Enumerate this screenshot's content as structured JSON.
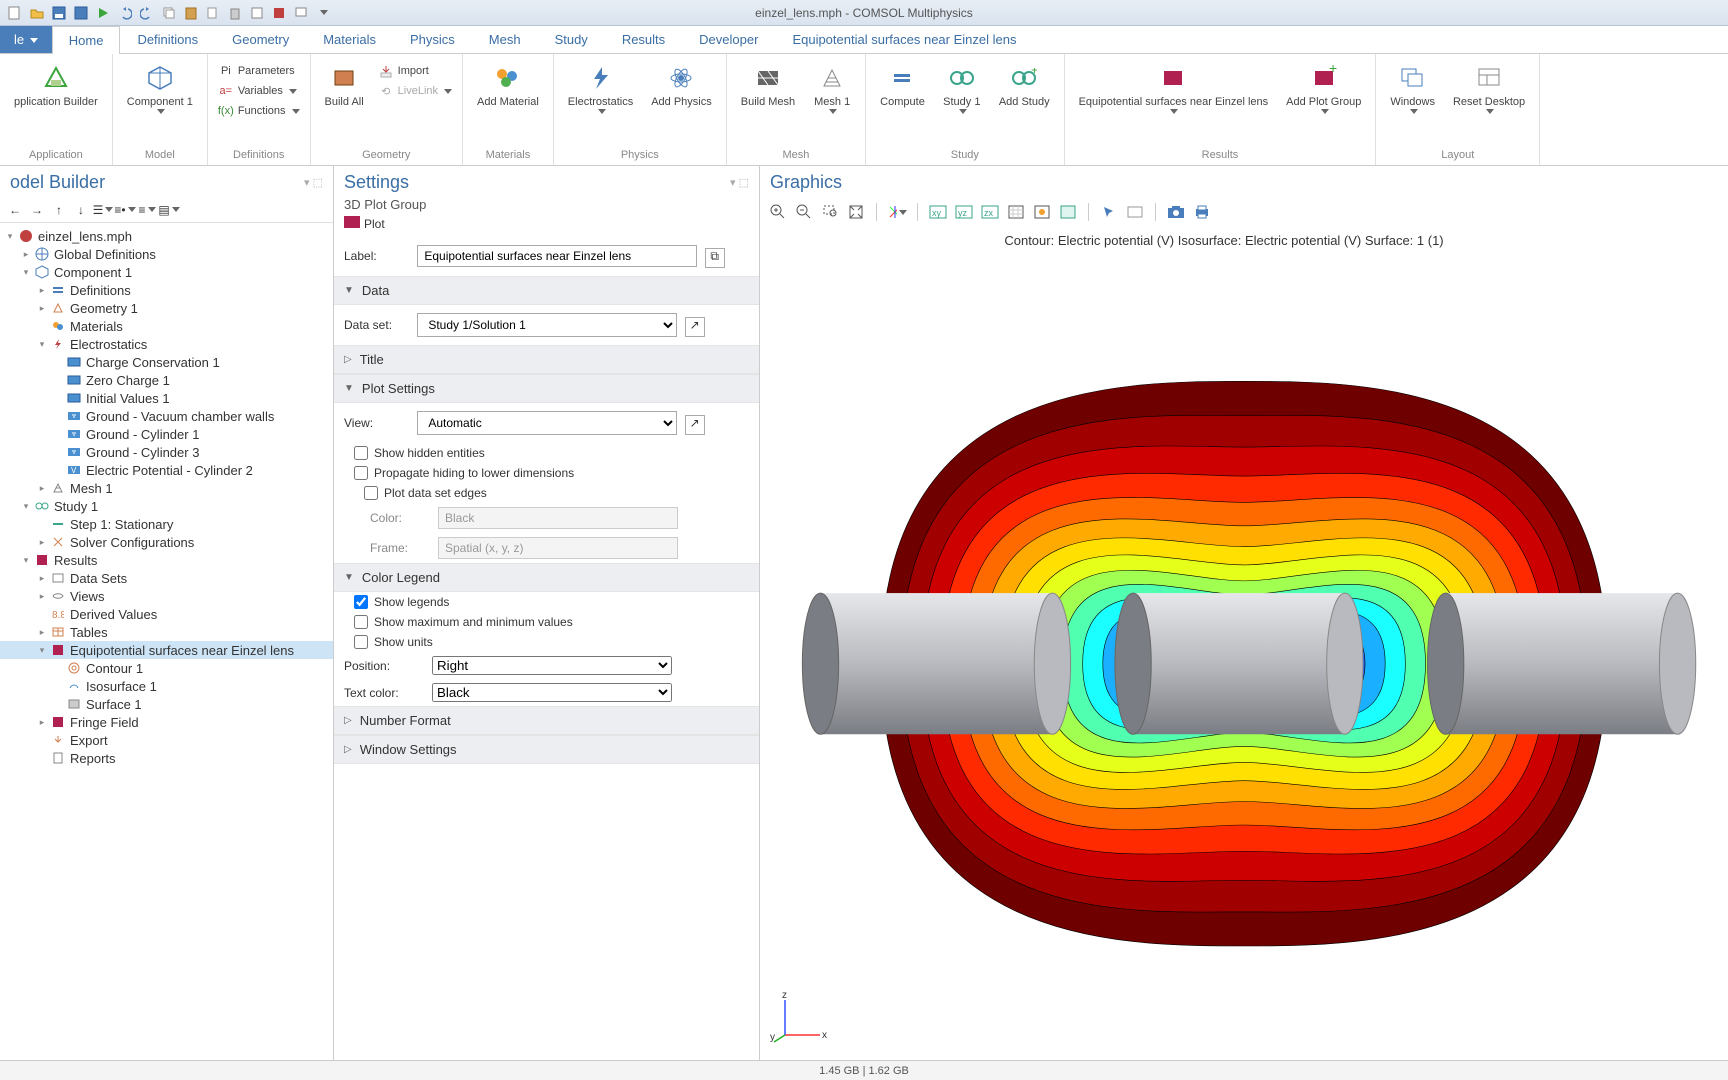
{
  "window": {
    "title": "einzel_lens.mph - COMSOL Multiphysics"
  },
  "ribbon": {
    "filemenu": "le",
    "tabs": [
      "Home",
      "Definitions",
      "Geometry",
      "Materials",
      "Physics",
      "Mesh",
      "Study",
      "Results",
      "Developer",
      "Equipotential surfaces near Einzel lens"
    ],
    "active_tab": 0,
    "groups": {
      "application": {
        "label": "Application",
        "appbuilder": "pplication\nBuilder"
      },
      "model": {
        "label": "Model",
        "component": "Component\n1"
      },
      "definitions": {
        "label": "Definitions",
        "parameters": "Parameters",
        "variables": "Variables",
        "functions": "Functions"
      },
      "geometry": {
        "label": "Geometry",
        "buildall": "Build\nAll",
        "import": "Import",
        "livelink": "LiveLink"
      },
      "materials": {
        "label": "Materials",
        "add": "Add\nMaterial"
      },
      "physics": {
        "label": "Physics",
        "electrostatics": "Electrostatics",
        "addphysics": "Add\nPhysics"
      },
      "mesh": {
        "label": "Mesh",
        "build": "Build\nMesh",
        "mesh1": "Mesh\n1"
      },
      "study": {
        "label": "Study",
        "compute": "Compute",
        "study1": "Study\n1",
        "addstudy": "Add\nStudy"
      },
      "results": {
        "label": "Results",
        "plot": "Equipotential surfaces\nnear Einzel lens",
        "addplot": "Add Plot\nGroup"
      },
      "layout": {
        "label": "Layout",
        "windows": "Windows",
        "reset": "Reset\nDesktop"
      }
    }
  },
  "modelbuilder": {
    "title": "odel Builder",
    "root": "einzel_lens.mph",
    "nodes": [
      {
        "lvl": 0,
        "exp": "▾",
        "ico": "comsol",
        "lbl": "einzel_lens.mph"
      },
      {
        "lvl": 1,
        "exp": "▸",
        "ico": "globe",
        "lbl": "Global Definitions"
      },
      {
        "lvl": 1,
        "exp": "▾",
        "ico": "comp",
        "lbl": "Component 1"
      },
      {
        "lvl": 2,
        "exp": "▸",
        "ico": "def",
        "lbl": "Definitions"
      },
      {
        "lvl": 2,
        "exp": "▸",
        "ico": "geom",
        "lbl": "Geometry 1"
      },
      {
        "lvl": 2,
        "exp": "",
        "ico": "mat",
        "lbl": "Materials"
      },
      {
        "lvl": 2,
        "exp": "▾",
        "ico": "es",
        "lbl": "Electrostatics"
      },
      {
        "lvl": 3,
        "exp": "",
        "ico": "bc",
        "lbl": "Charge Conservation 1"
      },
      {
        "lvl": 3,
        "exp": "",
        "ico": "bc",
        "lbl": "Zero Charge 1"
      },
      {
        "lvl": 3,
        "exp": "",
        "ico": "bc",
        "lbl": "Initial Values 1"
      },
      {
        "lvl": 3,
        "exp": "",
        "ico": "gnd",
        "lbl": "Ground - Vacuum chamber walls"
      },
      {
        "lvl": 3,
        "exp": "",
        "ico": "gnd",
        "lbl": "Ground - Cylinder 1"
      },
      {
        "lvl": 3,
        "exp": "",
        "ico": "gnd",
        "lbl": "Ground - Cylinder 3"
      },
      {
        "lvl": 3,
        "exp": "",
        "ico": "ep",
        "lbl": "Electric Potential - Cylinder 2"
      },
      {
        "lvl": 2,
        "exp": "▸",
        "ico": "mesh",
        "lbl": "Mesh 1"
      },
      {
        "lvl": 1,
        "exp": "▾",
        "ico": "study",
        "lbl": "Study 1"
      },
      {
        "lvl": 2,
        "exp": "",
        "ico": "step",
        "lbl": "Step 1: Stationary"
      },
      {
        "lvl": 2,
        "exp": "▸",
        "ico": "solv",
        "lbl": "Solver Configurations"
      },
      {
        "lvl": 1,
        "exp": "▾",
        "ico": "res",
        "lbl": "Results"
      },
      {
        "lvl": 2,
        "exp": "▸",
        "ico": "ds",
        "lbl": "Data Sets"
      },
      {
        "lvl": 2,
        "exp": "▸",
        "ico": "vw",
        "lbl": "Views"
      },
      {
        "lvl": 2,
        "exp": "",
        "ico": "dv",
        "lbl": "Derived Values"
      },
      {
        "lvl": 2,
        "exp": "▸",
        "ico": "tbl",
        "lbl": "Tables"
      },
      {
        "lvl": 2,
        "exp": "▾",
        "ico": "pg",
        "lbl": "Equipotential surfaces near Einzel lens",
        "sel": true
      },
      {
        "lvl": 3,
        "exp": "",
        "ico": "cnt",
        "lbl": "Contour 1"
      },
      {
        "lvl": 3,
        "exp": "",
        "ico": "iso",
        "lbl": "Isosurface 1"
      },
      {
        "lvl": 3,
        "exp": "",
        "ico": "srf",
        "lbl": "Surface 1"
      },
      {
        "lvl": 2,
        "exp": "▸",
        "ico": "pg",
        "lbl": "Fringe Field"
      },
      {
        "lvl": 2,
        "exp": "",
        "ico": "exp",
        "lbl": "Export"
      },
      {
        "lvl": 2,
        "exp": "",
        "ico": "rep",
        "lbl": "Reports"
      }
    ]
  },
  "settings": {
    "title": "Settings",
    "subtitle": "3D Plot Group",
    "plotbtn": "Plot",
    "label_label": "Label:",
    "label_value": "Equipotential surfaces near Einzel lens",
    "sections": {
      "data": "Data",
      "title": "Title",
      "plotsettings": "Plot Settings",
      "colorlegend": "Color Legend",
      "numberformat": "Number Format",
      "windowsettings": "Window Settings"
    },
    "dataset_label": "Data set:",
    "dataset_value": "Study 1/Solution 1",
    "view_label": "View:",
    "view_value": "Automatic",
    "show_hidden": "Show hidden entities",
    "propagate": "Propagate hiding to lower dimensions",
    "plot_edges": "Plot data set edges",
    "color_label": "Color:",
    "color_value": "Black",
    "frame_label": "Frame:",
    "frame_value": "Spatial  (x, y, z)",
    "show_legends": "Show legends",
    "show_maxmin": "Show maximum and minimum values",
    "show_units": "Show units",
    "position_label": "Position:",
    "position_value": "Right",
    "textcolor_label": "Text color:",
    "textcolor_value": "Black"
  },
  "graphics": {
    "title": "Graphics",
    "plot_title": "Contour: Electric potential (V)   Isosurface: Electric potential (V)   Surface: 1 (1)",
    "viz": {
      "type": "isosurface-3d",
      "cylinder_color": "#b9babf",
      "cylinder_highlight": "#e6e7ea",
      "cylinder_shadow": "#7b7d84",
      "contour_line_color": "#000000",
      "background": "#ffffff",
      "colormap": [
        "#6e0000",
        "#a00000",
        "#cc0000",
        "#ff2a00",
        "#ff6a00",
        "#ffaa00",
        "#ffe000",
        "#e6ff1a",
        "#a0ff50",
        "#50ffb0",
        "#1affff",
        "#1ab0ff",
        "#1a60ff",
        "#1a1aff",
        "#0000cc"
      ],
      "triad": {
        "x": "#ff3030",
        "y": "#20b020",
        "z": "#3050ff"
      }
    }
  },
  "status": {
    "mem": "1.45 GB | 1.62 GB"
  }
}
